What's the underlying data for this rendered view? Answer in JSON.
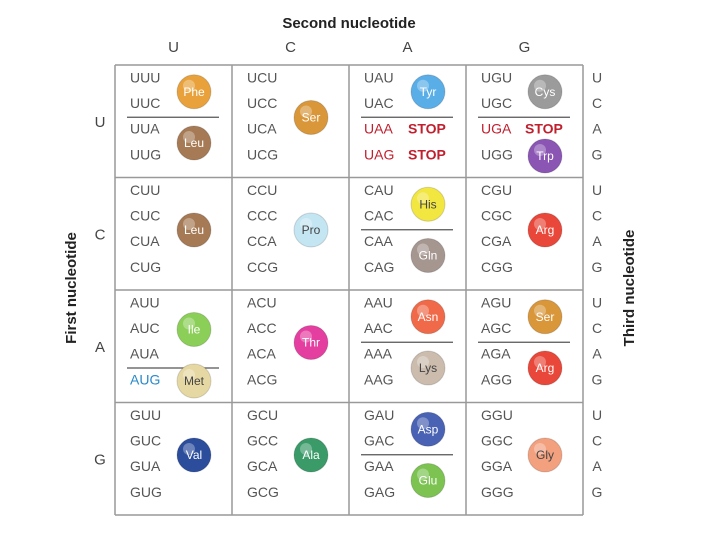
{
  "title": "Second nucleotide",
  "left_label": "First nucleotide",
  "right_label": "Third nucleotide",
  "columns": [
    "U",
    "C",
    "A",
    "G"
  ],
  "third": [
    "U",
    "C",
    "A",
    "G"
  ],
  "rows": [
    {
      "label": "U",
      "cells": [
        {
          "groups": [
            {
              "codons": [
                "UUU",
                "UUC"
              ],
              "amino": "Phe",
              "color": "#e9a23b"
            },
            {
              "codons": [
                "UUA",
                "UUG"
              ],
              "amino": "Leu",
              "color": "#a57a55"
            }
          ]
        },
        {
          "groups": [
            {
              "codons": [
                "UCU",
                "UCC",
                "UCA",
                "UCG"
              ],
              "amino": "Ser",
              "color": "#d9973a"
            }
          ]
        },
        {
          "groups": [
            {
              "codons": [
                "UAU",
                "UAC"
              ],
              "amino": "Tyr",
              "color": "#5aaee8"
            },
            {
              "codons": [
                "UAA",
                "UAG"
              ],
              "stop": "STOP",
              "codon_color": "#c01f2e"
            }
          ]
        },
        {
          "groups": [
            {
              "codons": [
                "UGU",
                "UGC"
              ],
              "amino": "Cys",
              "color": "#9b9b9b"
            },
            {
              "codons": [
                "UGA"
              ],
              "stop": "STOP",
              "codon_color": "#c01f2e"
            },
            {
              "codons": [
                "UGG"
              ],
              "amino": "Trp",
              "color": "#8a55b3"
            }
          ]
        }
      ]
    },
    {
      "label": "C",
      "cells": [
        {
          "groups": [
            {
              "codons": [
                "CUU",
                "CUC",
                "CUA",
                "CUG"
              ],
              "amino": "Leu",
              "color": "#a57a55"
            }
          ]
        },
        {
          "groups": [
            {
              "codons": [
                "CCU",
                "CCC",
                "CCA",
                "CCG"
              ],
              "amino": "Pro",
              "color": "#c4e6f3"
            }
          ]
        },
        {
          "groups": [
            {
              "codons": [
                "CAU",
                "CAC"
              ],
              "amino": "His",
              "color": "#f2e640"
            },
            {
              "codons": [
                "CAA",
                "CAG"
              ],
              "amino": "Gln",
              "color": "#a69690"
            }
          ]
        },
        {
          "groups": [
            {
              "codons": [
                "CGU",
                "CGC",
                "CGA",
                "CGG"
              ],
              "amino": "Arg",
              "color": "#e8473a"
            }
          ]
        }
      ]
    },
    {
      "label": "A",
      "cells": [
        {
          "groups": [
            {
              "codons": [
                "AUU",
                "AUC",
                "AUA"
              ],
              "amino": "Ile",
              "color": "#8ccf58"
            },
            {
              "codons": [
                "AUG"
              ],
              "amino": "Met",
              "color": "#e6d8a2",
              "codon_color": "#2a8ac8"
            }
          ]
        },
        {
          "groups": [
            {
              "codons": [
                "ACU",
                "ACC",
                "ACA",
                "ACG"
              ],
              "amino": "Thr",
              "color": "#e43fa0"
            }
          ]
        },
        {
          "groups": [
            {
              "codons": [
                "AAU",
                "AAC"
              ],
              "amino": "Asn",
              "color": "#f06a4a"
            },
            {
              "codons": [
                "AAA",
                "AAG"
              ],
              "amino": "Lys",
              "color": "#cbbcad"
            }
          ]
        },
        {
          "groups": [
            {
              "codons": [
                "AGU",
                "AGC"
              ],
              "amino": "Ser",
              "color": "#d9973a"
            },
            {
              "codons": [
                "AGA",
                "AGG"
              ],
              "amino": "Arg",
              "color": "#e8473a"
            }
          ]
        }
      ]
    },
    {
      "label": "G",
      "cells": [
        {
          "groups": [
            {
              "codons": [
                "GUU",
                "GUC",
                "GUA",
                "GUG"
              ],
              "amino": "Val",
              "color": "#2b4d9c"
            }
          ]
        },
        {
          "groups": [
            {
              "codons": [
                "GCU",
                "GCC",
                "GCA",
                "GCG"
              ],
              "amino": "Ala",
              "color": "#3a9a68"
            }
          ]
        },
        {
          "groups": [
            {
              "codons": [
                "GAU",
                "GAC"
              ],
              "amino": "Asp",
              "color": "#4a62b3"
            },
            {
              "codons": [
                "GAA",
                "GAG"
              ],
              "amino": "Glu",
              "color": "#7cc352"
            }
          ]
        },
        {
          "groups": [
            {
              "codons": [
                "GGU",
                "GGC",
                "GGA",
                "GGG"
              ],
              "amino": "Gly",
              "color": "#f2a07e"
            }
          ]
        }
      ]
    }
  ]
}
